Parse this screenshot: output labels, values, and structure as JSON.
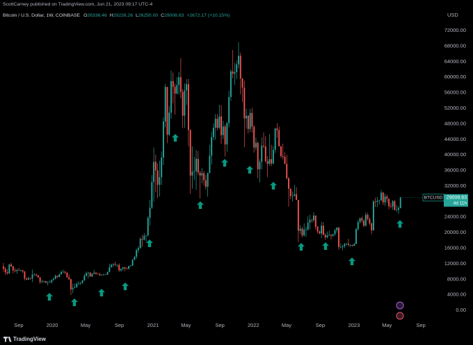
{
  "header": {
    "author": "ScottCarney published on TradingView.com, Jun 21, 2023 09:17 UTC-4",
    "legend": [
      {
        "key": "O",
        "value": "26336.46"
      },
      {
        "key": "H",
        "value": "29226.26"
      },
      {
        "key": "L",
        "value": "26250.00"
      },
      {
        "key": "C",
        "value": "29008.63"
      }
    ],
    "change": "+2672.17 (+10.15%)"
  },
  "footer": {
    "brand": "TradingView"
  },
  "chart_data": {
    "type": "candlestick",
    "title": "Bitcoin / U.S. Dollar, 1W, COINBASE",
    "y_unit": "USD",
    "up_color": "#26a69a",
    "down_color": "#ef5350",
    "grid": false,
    "last_price": {
      "symbol": "BTCUSD",
      "value_label": "29008.63",
      "countdown": "4d 11h"
    },
    "xlim": [
      -1.8,
      229.2
    ],
    "xticks": [
      {
        "value": 7.9,
        "label": "Sep"
      },
      {
        "value": 25.3,
        "label": "2020"
      },
      {
        "value": 42.6,
        "label": "May"
      },
      {
        "value": 60.1,
        "label": "Sep"
      },
      {
        "value": 77.6,
        "label": "2021"
      },
      {
        "value": 94.7,
        "label": "May"
      },
      {
        "value": 112.3,
        "label": "Sep"
      },
      {
        "value": 129.7,
        "label": "2022"
      },
      {
        "value": 146.9,
        "label": "May"
      },
      {
        "value": 164.4,
        "label": "Sep"
      },
      {
        "value": 181.9,
        "label": "2023"
      },
      {
        "value": 199,
        "label": "May"
      },
      {
        "value": 216.6,
        "label": "Sep"
      }
    ],
    "ylim": [
      -3200,
      76300
    ],
    "yticks": [
      {
        "value": 0,
        "label": "0.00"
      },
      {
        "value": 4000,
        "label": "4000.00"
      },
      {
        "value": 8000,
        "label": "8000.00"
      },
      {
        "value": 12000,
        "label": "12000.00"
      },
      {
        "value": 16000,
        "label": "16000.00"
      },
      {
        "value": 20000,
        "label": "20000.00"
      },
      {
        "value": 24000,
        "label": "24000.00"
      },
      {
        "value": 28000,
        "label": "28000.00"
      },
      {
        "value": 32000,
        "label": "32000.00"
      },
      {
        "value": 36000,
        "label": "36000.00"
      },
      {
        "value": 40000,
        "label": "40000.00"
      },
      {
        "value": 44000,
        "label": "44000.00"
      },
      {
        "value": 48000,
        "label": "48000.00"
      },
      {
        "value": 52000,
        "label": "52000.00"
      },
      {
        "value": 56000,
        "label": "56000.00"
      },
      {
        "value": 60000,
        "label": "60000.00"
      },
      {
        "value": 64000,
        "label": "64000.00"
      },
      {
        "value": 68000,
        "label": "68000.00"
      },
      {
        "value": 72000,
        "label": "72000.00"
      }
    ],
    "ohlc": [
      [
        11300,
        12200,
        9900,
        10700
      ],
      [
        10700,
        11100,
        9100,
        9800
      ],
      [
        9800,
        10600,
        9200,
        9500
      ],
      [
        9500,
        12000,
        9400,
        11800
      ],
      [
        11800,
        12300,
        11200,
        11300
      ],
      [
        11300,
        11500,
        9500,
        10300
      ],
      [
        10300,
        10900,
        9800,
        10100
      ],
      [
        10100,
        10700,
        9400,
        10400
      ],
      [
        10400,
        10900,
        10200,
        10300
      ],
      [
        10300,
        10500,
        10000,
        10300
      ],
      [
        10300,
        10400,
        9600,
        10000
      ],
      [
        10000,
        10100,
        7700,
        8200
      ],
      [
        8200,
        8500,
        7800,
        7900
      ],
      [
        7900,
        8700,
        7800,
        8300
      ],
      [
        8300,
        8400,
        7900,
        8200
      ],
      [
        8200,
        10500,
        7300,
        9200
      ],
      [
        9200,
        9500,
        8900,
        9200
      ],
      [
        9200,
        9500,
        8700,
        9000
      ],
      [
        9000,
        9100,
        8400,
        8500
      ],
      [
        8500,
        8600,
        6800,
        7300
      ],
      [
        7300,
        7900,
        7000,
        7400
      ],
      [
        7400,
        7700,
        7100,
        7500
      ],
      [
        7500,
        7600,
        7000,
        7100
      ],
      [
        7100,
        7500,
        6400,
        7200
      ],
      [
        7200,
        7700,
        7100,
        7300
      ],
      [
        7300,
        8000,
        6900,
        7800
      ],
      [
        7800,
        8500,
        7700,
        8100
      ],
      [
        8100,
        9200,
        8000,
        8900
      ],
      [
        8900,
        8900,
        8300,
        8600
      ],
      [
        8600,
        9500,
        8500,
        9300
      ],
      [
        9300,
        10200,
        9200,
        9900
      ],
      [
        9900,
        10500,
        9700,
        9900
      ],
      [
        9900,
        10200,
        9300,
        9700
      ],
      [
        9700,
        9800,
        8400,
        8500
      ],
      [
        8500,
        9200,
        7700,
        8000
      ],
      [
        8000,
        8200,
        3900,
        5400
      ],
      [
        5400,
        6900,
        4400,
        5800
      ],
      [
        5800,
        6900,
        5700,
        5900
      ],
      [
        5900,
        7200,
        5900,
        6800
      ],
      [
        6800,
        7500,
        6500,
        6900
      ],
      [
        6900,
        7300,
        6500,
        7100
      ],
      [
        7100,
        7800,
        6800,
        7700
      ],
      [
        7700,
        9400,
        7600,
        8900
      ],
      [
        8900,
        10000,
        8700,
        9600
      ],
      [
        9600,
        9900,
        8200,
        9700
      ],
      [
        9700,
        9900,
        8800,
        8700
      ],
      [
        8700,
        9600,
        8600,
        9400
      ],
      [
        9400,
        10400,
        9300,
        9700
      ],
      [
        9700,
        9900,
        9200,
        9400
      ],
      [
        9400,
        9600,
        9200,
        9300
      ],
      [
        9300,
        9700,
        8900,
        9000
      ],
      [
        9000,
        9300,
        8900,
        9100
      ],
      [
        9100,
        9400,
        9000,
        9250
      ],
      [
        9250,
        9300,
        9100,
        9200
      ],
      [
        9200,
        10000,
        9100,
        9900
      ],
      [
        9900,
        12000,
        9800,
        11100
      ],
      [
        11100,
        12000,
        11000,
        11700
      ],
      [
        11700,
        12100,
        11100,
        11900
      ],
      [
        11900,
        12500,
        11400,
        11700
      ],
      [
        11700,
        11800,
        11100,
        11700
      ],
      [
        11700,
        12100,
        9900,
        10300
      ],
      [
        10300,
        10600,
        9900,
        10700
      ],
      [
        10700,
        11100,
        10200,
        11100
      ],
      [
        11100,
        11200,
        10100,
        10800
      ],
      [
        10800,
        11000,
        10500,
        10700
      ],
      [
        10700,
        11500,
        10500,
        11400
      ],
      [
        11400,
        11700,
        11200,
        11500
      ],
      [
        11500,
        13200,
        11400,
        13000
      ],
      [
        13000,
        14000,
        12900,
        13800
      ],
      [
        13800,
        15900,
        13200,
        15500
      ],
      [
        15500,
        16500,
        14800,
        16000
      ],
      [
        16000,
        18800,
        15900,
        18400
      ],
      [
        18400,
        19400,
        16300,
        18200
      ],
      [
        18200,
        19900,
        18000,
        19200
      ],
      [
        19200,
        19400,
        17600,
        19300
      ],
      [
        19300,
        24200,
        19000,
        23800
      ],
      [
        23800,
        28400,
        21800,
        26400
      ],
      [
        26400,
        34800,
        26100,
        33000
      ],
      [
        33000,
        41900,
        28000,
        38200
      ],
      [
        38200,
        40100,
        30400,
        36000
      ],
      [
        36000,
        37800,
        28900,
        32300
      ],
      [
        32300,
        38500,
        29300,
        34300
      ],
      [
        34300,
        40900,
        32300,
        39300
      ],
      [
        39300,
        49700,
        37400,
        48600
      ],
      [
        48600,
        58300,
        47100,
        57500
      ],
      [
        57500,
        57500,
        43000,
        45200
      ],
      [
        45200,
        52600,
        44900,
        50900
      ],
      [
        50900,
        61700,
        49300,
        59000
      ],
      [
        59000,
        61200,
        53200,
        57500
      ],
      [
        57500,
        58400,
        50400,
        55800
      ],
      [
        55800,
        60000,
        55600,
        58000
      ],
      [
        58000,
        61400,
        55500,
        60000
      ],
      [
        60000,
        64900,
        54600,
        56200
      ],
      [
        56200,
        57000,
        47000,
        50100
      ],
      [
        50100,
        58400,
        47000,
        56600
      ],
      [
        56600,
        59500,
        52900,
        58200
      ],
      [
        58200,
        59600,
        42200,
        46400
      ],
      [
        46400,
        46600,
        30000,
        34700
      ],
      [
        34700,
        42200,
        31300,
        35700
      ],
      [
        35700,
        39500,
        33500,
        35800
      ],
      [
        35800,
        41300,
        31000,
        39000
      ],
      [
        39000,
        41000,
        34800,
        35500
      ],
      [
        35500,
        36000,
        28800,
        34700
      ],
      [
        34700,
        36600,
        32700,
        35300
      ],
      [
        35300,
        35900,
        32100,
        33500
      ],
      [
        33500,
        34900,
        31100,
        31800
      ],
      [
        31800,
        35400,
        29300,
        35400
      ],
      [
        35400,
        42600,
        35200,
        39800
      ],
      [
        39800,
        46000,
        37500,
        44600
      ],
      [
        44600,
        48100,
        43800,
        47000
      ],
      [
        47000,
        50500,
        43900,
        49300
      ],
      [
        49300,
        50500,
        46300,
        47000
      ],
      [
        47000,
        52900,
        46600,
        49900
      ],
      [
        49900,
        52800,
        42800,
        45100
      ],
      [
        45100,
        48800,
        44100,
        47300
      ],
      [
        47300,
        47800,
        39600,
        42700
      ],
      [
        42700,
        48500,
        40800,
        48200
      ],
      [
        48200,
        56500,
        47100,
        54900
      ],
      [
        54900,
        62000,
        53900,
        61500
      ],
      [
        61500,
        67000,
        59700,
        60900
      ],
      [
        60900,
        63700,
        58000,
        61300
      ],
      [
        61300,
        64300,
        59500,
        63300
      ],
      [
        63300,
        69000,
        62300,
        65500
      ],
      [
        65500,
        66300,
        55600,
        59700
      ],
      [
        59700,
        59800,
        53600,
        57300
      ],
      [
        57300,
        59100,
        42000,
        49400
      ],
      [
        49400,
        51900,
        46700,
        50100
      ],
      [
        50100,
        50300,
        45500,
        46700
      ],
      [
        46700,
        51900,
        45900,
        50800
      ],
      [
        50800,
        52100,
        45700,
        47300
      ],
      [
        47300,
        47600,
        40600,
        41900
      ],
      [
        41900,
        44500,
        41200,
        43100
      ],
      [
        43100,
        43500,
        34000,
        36300
      ],
      [
        36300,
        38900,
        32900,
        38200
      ],
      [
        38200,
        44500,
        36300,
        42400
      ],
      [
        42400,
        45800,
        41700,
        42200
      ],
      [
        42200,
        44800,
        38000,
        38400
      ],
      [
        38400,
        39700,
        34300,
        37700
      ],
      [
        37700,
        45400,
        37200,
        38900
      ],
      [
        38900,
        42600,
        37100,
        37800
      ],
      [
        37800,
        42300,
        37600,
        41300
      ],
      [
        41300,
        47000,
        40500,
        46800
      ],
      [
        46800,
        48200,
        44400,
        46400
      ],
      [
        46400,
        47300,
        42200,
        42200
      ],
      [
        42200,
        42400,
        39200,
        39700
      ],
      [
        39700,
        42900,
        38900,
        39500
      ],
      [
        39500,
        40700,
        37600,
        37700
      ],
      [
        37700,
        40000,
        33700,
        34000
      ],
      [
        34000,
        34300,
        26700,
        31300
      ],
      [
        31300,
        31400,
        28600,
        29400
      ],
      [
        29400,
        30600,
        28000,
        29500
      ],
      [
        29500,
        32300,
        29300,
        29900
      ],
      [
        29900,
        31700,
        28400,
        28400
      ],
      [
        28400,
        28400,
        17600,
        20500
      ],
      [
        20500,
        21900,
        19700,
        21000
      ],
      [
        21000,
        21500,
        18800,
        19300
      ],
      [
        19300,
        22400,
        19000,
        20800
      ],
      [
        20800,
        21500,
        18900,
        20800
      ],
      [
        20800,
        24200,
        20500,
        22600
      ],
      [
        22600,
        24600,
        20800,
        23300
      ],
      [
        23300,
        23600,
        22500,
        23200
      ],
      [
        23200,
        25200,
        22700,
        24400
      ],
      [
        24400,
        24400,
        20800,
        21500
      ],
      [
        21500,
        21800,
        19800,
        20300
      ],
      [
        20300,
        20600,
        19600,
        19800
      ],
      [
        19800,
        22800,
        18600,
        21800
      ],
      [
        21800,
        22700,
        19400,
        19400
      ],
      [
        19400,
        19900,
        18200,
        18800
      ],
      [
        18800,
        20300,
        18500,
        19300
      ],
      [
        19300,
        20500,
        19100,
        19400
      ],
      [
        19400,
        19700,
        18200,
        19200
      ],
      [
        19200,
        19700,
        18900,
        19600
      ],
      [
        19600,
        21000,
        19200,
        20600
      ],
      [
        20600,
        21400,
        20000,
        21300
      ],
      [
        21300,
        21400,
        15600,
        16300
      ],
      [
        16300,
        17200,
        16000,
        16300
      ],
      [
        16300,
        16800,
        15500,
        16500
      ],
      [
        16500,
        17300,
        16000,
        17100
      ],
      [
        17100,
        17400,
        16700,
        17100
      ],
      [
        17100,
        18400,
        16500,
        16800
      ],
      [
        16800,
        17000,
        16300,
        16800
      ],
      [
        16800,
        16900,
        16400,
        16600
      ],
      [
        16600,
        17400,
        16500,
        17100
      ],
      [
        17100,
        21300,
        17000,
        20900
      ],
      [
        20900,
        23300,
        20400,
        22700
      ],
      [
        22700,
        23900,
        22300,
        23700
      ],
      [
        23700,
        24200,
        22500,
        23100
      ],
      [
        23100,
        23400,
        21400,
        21800
      ],
      [
        21800,
        25200,
        21500,
        24600
      ],
      [
        24600,
        25100,
        23100,
        23500
      ],
      [
        23500,
        23900,
        21900,
        22400
      ],
      [
        22400,
        22600,
        19600,
        20600
      ],
      [
        20600,
        28400,
        20500,
        28000
      ],
      [
        28000,
        29000,
        26600,
        27900
      ],
      [
        27900,
        29200,
        26600,
        28200
      ],
      [
        28200,
        28500,
        27200,
        28300
      ],
      [
        28300,
        31000,
        28200,
        30300
      ],
      [
        30300,
        30500,
        27100,
        27800
      ],
      [
        27800,
        30000,
        26900,
        29300
      ],
      [
        29300,
        29800,
        27700,
        28700
      ],
      [
        28700,
        28800,
        26000,
        26800
      ],
      [
        26800,
        27700,
        26400,
        26700
      ],
      [
        26700,
        28400,
        25900,
        28100
      ],
      [
        28100,
        28400,
        25800,
        25800
      ],
      [
        25800,
        27100,
        25400,
        25900
      ],
      [
        25900,
        26800,
        24800,
        26336.46
      ],
      [
        26336.46,
        29226.26,
        26250,
        29008.63
      ]
    ]
  }
}
